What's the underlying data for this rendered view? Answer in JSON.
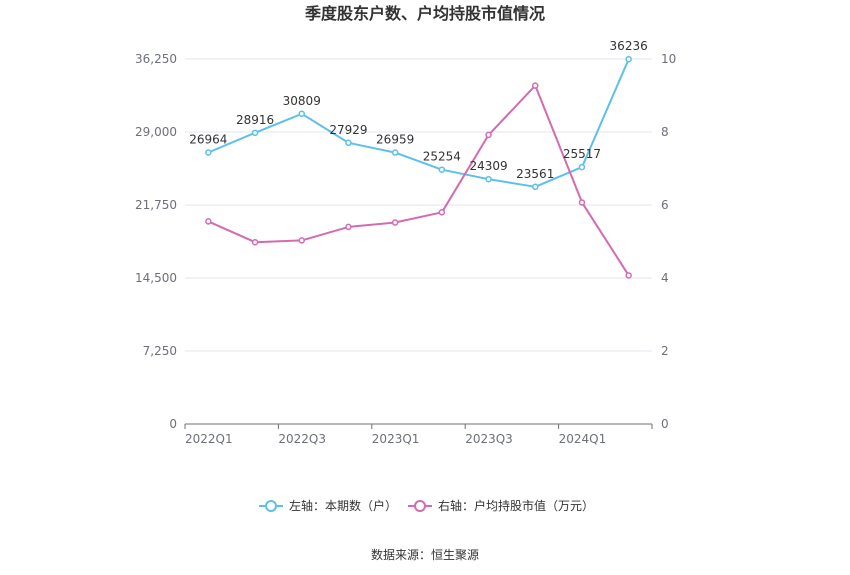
{
  "chart_data": {
    "type": "line",
    "title": "季度股东户数、户均持股市值情况",
    "source": "数据来源：恒生聚源",
    "x": [
      "2022Q1",
      "2022Q2",
      "2022Q3",
      "2022Q4",
      "2023Q1",
      "2023Q2",
      "2023Q3",
      "2023Q4",
      "2024Q1",
      "2024Q2"
    ],
    "x_tick_labels": [
      "2022Q1",
      "2022Q3",
      "2023Q1",
      "2023Q3",
      "2024Q1"
    ],
    "y_left": {
      "ylim": [
        0,
        36250
      ],
      "ticks": [
        "0",
        "7,250",
        "14,500",
        "21,750",
        "29,000",
        "36,250"
      ],
      "tick_values": [
        0,
        7250,
        14500,
        21750,
        29000,
        36250
      ]
    },
    "y_right": {
      "ylim": [
        0,
        10
      ],
      "ticks": [
        "0",
        "2",
        "4",
        "6",
        "8",
        "10"
      ],
      "tick_values": [
        0,
        2,
        4,
        6,
        8,
        10
      ]
    },
    "series": [
      {
        "name": "左轴：本期数（户）",
        "axis": "left",
        "color": "#5bc0eb",
        "values": [
          26964,
          28916,
          30809,
          27929,
          26959,
          25254,
          24309,
          23561,
          25517,
          36236
        ],
        "labels": [
          "26964",
          "28916",
          "30809",
          "27929",
          "26959",
          "25254",
          "24309",
          "23561",
          "25517",
          "36236"
        ]
      },
      {
        "name": "右轴：户均持股市值（万元）",
        "axis": "right",
        "color": "#d36bb1",
        "values": [
          5.55,
          4.98,
          5.03,
          5.4,
          5.52,
          5.8,
          7.92,
          9.27,
          6.07,
          4.07
        ]
      }
    ],
    "grid": true,
    "legend": "bottom"
  }
}
